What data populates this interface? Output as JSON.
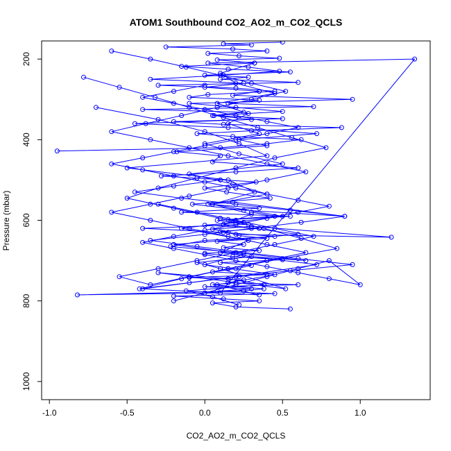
{
  "chart_data": {
    "type": "line",
    "title": "ATOM1 Southbound CO2_AO2_m_CO2_QCLS",
    "xlabel": "CO2_AO2_m_CO2_QCLS",
    "ylabel": "Pressure (mbar)",
    "xlim": [
      -1.05,
      1.45
    ],
    "ylim": [
      1045,
      155
    ],
    "y_reversed": true,
    "grid": false,
    "xticks": [
      -1.0,
      -0.5,
      0.0,
      0.5,
      1.0
    ],
    "xtick_labels": [
      "-1.0",
      "-0.5",
      "0.0",
      "0.5",
      "1.0"
    ],
    "yticks": [
      200,
      400,
      600,
      800,
      1000
    ],
    "ytick_labels": [
      "200",
      "400",
      "600",
      "800",
      "1000"
    ],
    "series_color": "#0000ff",
    "marker": "open-circle",
    "series": [
      {
        "x": [
          0.22,
          0.05,
          -0.12,
          0.38,
          0.15,
          -0.3,
          0.52,
          0.1,
          -0.05,
          0.3,
          0.65,
          0.2,
          -0.22,
          0.0,
          0.45,
          0.12,
          -0.4,
          0.28,
          0.08,
          0.55,
          -0.15,
          0.35,
          0.02,
          0.18,
          0.9,
          0.25,
          -0.08,
          0.42,
          0.14,
          0.0,
          0.33,
          -0.28,
          0.2,
          0.6,
          0.05,
          0.1,
          -0.18,
          0.4,
          0.22,
          0.72,
          0.15,
          -0.45,
          0.3,
          0.06,
          0.5,
          0.2,
          -0.1,
          0.95,
          0.18,
          0.35,
          0.0,
          0.25,
          -0.35,
          0.12,
          0.48,
          0.28,
          0.02,
          1.35,
          0.1,
          -0.82,
          0.25,
          0.38,
          0.05,
          0.2
        ],
        "y": [
          810,
          790,
          775,
          760,
          745,
          730,
          770,
          720,
          705,
          690,
          700,
          680,
          665,
          650,
          640,
          630,
          620,
          610,
          600,
          590,
          580,
          570,
          560,
          555,
          590,
          575,
          560,
          545,
          530,
          520,
          505,
          490,
          480,
          470,
          455,
          440,
          430,
          415,
          400,
          385,
          370,
          360,
          350,
          340,
          330,
          320,
          310,
          300,
          290,
          280,
          270,
          260,
          250,
          240,
          230,
          220,
          210,
          200,
          780,
          785,
          775,
          770,
          760,
          755
        ]
      },
      {
        "x": [
          -0.95,
          0.1,
          0.4,
          0.62,
          0.18,
          -0.05,
          0.3,
          0.88,
          0.12,
          -0.2,
          0.5,
          0.05,
          0.25,
          -0.4,
          0.7,
          0.15,
          0.35,
          -0.1,
          0.02,
          0.45,
          0.2,
          -0.3,
          0.6,
          0.1,
          0.28,
          0.0,
          0.55,
          0.15,
          -0.15,
          0.32,
          0.08,
          0.48,
          0.22,
          0.02,
          0.4,
          0.18,
          -0.25,
          0.3,
          0.12,
          0.5
        ],
        "y": [
          428,
          420,
          410,
          400,
          392,
          385,
          378,
          370,
          362,
          355,
          348,
          340,
          332,
          325,
          318,
          310,
          302,
          295,
          288,
          280,
          272,
          265,
          258,
          250,
          245,
          240,
          232,
          225,
          218,
          210,
          202,
          198,
          192,
          186,
          180,
          175,
          170,
          165,
          162,
          158
        ]
      },
      {
        "x": [
          0.55,
          0.2,
          0.05,
          0.35,
          0.12,
          -0.2,
          0.45,
          0.08,
          0.3,
          0.0,
          0.6,
          0.15,
          0.25,
          -0.1,
          0.4,
          0.05,
          0.2,
          0.3,
          0.1,
          0.5,
          0.18,
          0.0,
          0.35,
          0.12,
          0.25,
          0.08,
          0.4,
          0.22,
          0.15,
          0.05,
          0.3,
          1.2,
          0.2,
          0.1,
          0.35,
          0.0,
          0.25,
          0.15,
          0.45,
          0.3
        ],
        "y": [
          820,
          815,
          805,
          800,
          795,
          788,
          782,
          776,
          770,
          765,
          760,
          755,
          748,
          742,
          735,
          728,
          720,
          712,
          705,
          698,
          690,
          682,
          675,
          668,
          660,
          652,
          645,
          638,
          630,
          622,
          615,
          642,
          635,
          628,
          620,
          612,
          605,
          598,
          590,
          580
        ]
      },
      {
        "x": [
          -0.7,
          -0.3,
          0.0,
          0.22,
          0.4,
          -0.5,
          0.15,
          0.32,
          0.05,
          0.5,
          -0.15,
          0.28,
          0.1,
          0.72,
          0.2,
          -0.4,
          0.35,
          0.08,
          0.45,
          0.0,
          0.25,
          -0.2,
          0.6,
          0.12,
          0.3,
          0.05,
          0.4,
          0.18,
          -0.1,
          0.5,
          0.22,
          0.0,
          0.35,
          0.15,
          0.28,
          0.08,
          0.45,
          0.2,
          0.1,
          0.32
        ],
        "y": [
          320,
          350,
          380,
          410,
          440,
          470,
          500,
          530,
          560,
          590,
          620,
          650,
          680,
          710,
          740,
          770,
          785,
          760,
          735,
          710,
          685,
          660,
          635,
          610,
          585,
          560,
          535,
          510,
          485,
          460,
          435,
          410,
          385,
          360,
          335,
          310,
          285,
          260,
          235,
          210
        ]
      },
      {
        "x": [
          -0.78,
          -0.55,
          -0.32,
          -0.1,
          0.12,
          0.34,
          0.56,
          0.78,
          0.45,
          0.2,
          -0.05,
          -0.3,
          -0.5,
          -0.2,
          0.1,
          0.38,
          0.62,
          0.85,
          0.5,
          0.15,
          -0.15,
          -0.42,
          -0.1,
          0.22,
          0.55,
          0.95,
          0.6,
          0.25,
          -0.05,
          -0.35,
          0.0,
          0.3,
          0.62,
          0.9,
          0.55,
          0.2,
          -0.15,
          -0.45,
          -0.2,
          0.1
        ],
        "y": [
          245,
          270,
          295,
          320,
          345,
          370,
          395,
          420,
          445,
          470,
          495,
          520,
          545,
          570,
          595,
          620,
          645,
          670,
          695,
          720,
          745,
          770,
          755,
          740,
          725,
          710,
          695,
          680,
          665,
          650,
          635,
          620,
          605,
          590,
          575,
          560,
          545,
          530,
          515,
          500
        ]
      },
      {
        "x": [
          -0.6,
          -0.35,
          -0.12,
          0.1,
          0.3,
          0.52,
          0.3,
          0.08,
          -0.15,
          -0.38,
          -0.6,
          -0.35,
          -0.1,
          0.15,
          0.4,
          0.65,
          0.4,
          0.15,
          -0.1,
          -0.35,
          -0.6,
          -0.35,
          -0.1,
          0.15,
          0.4,
          0.65,
          0.4,
          0.15,
          -0.1,
          -0.35,
          -0.55,
          -0.3,
          -0.05,
          0.2,
          0.45,
          0.7,
          0.45,
          0.2,
          -0.05,
          -0.3
        ],
        "y": [
          180,
          200,
          220,
          240,
          260,
          280,
          300,
          320,
          340,
          360,
          380,
          400,
          420,
          440,
          460,
          480,
          500,
          520,
          540,
          560,
          580,
          600,
          620,
          640,
          660,
          680,
          700,
          720,
          740,
          760,
          740,
          720,
          700,
          680,
          660,
          640,
          620,
          600,
          580,
          560
        ]
      },
      {
        "x": [
          -0.2,
          0.0,
          0.2,
          0.4,
          0.6,
          0.8,
          1.0,
          0.8,
          0.6,
          0.4,
          0.2,
          0.0,
          -0.2,
          -0.4,
          -0.2,
          0.0,
          0.2,
          0.4,
          0.6,
          0.8,
          0.6,
          0.4,
          0.2,
          0.0,
          -0.2,
          -0.4,
          -0.6,
          -0.4,
          -0.2,
          0.0,
          0.2,
          0.4,
          0.6,
          0.4,
          0.2,
          0.0,
          -0.2,
          -0.4,
          -0.2,
          0.0
        ],
        "y": [
          800,
          780,
          760,
          740,
          720,
          700,
          760,
          745,
          730,
          715,
          700,
          685,
          670,
          655,
          640,
          625,
          610,
          595,
          580,
          565,
          550,
          535,
          520,
          505,
          490,
          475,
          460,
          445,
          430,
          415,
          400,
          385,
          370,
          355,
          340,
          325,
          310,
          295,
          280,
          265
        ]
      }
    ]
  }
}
